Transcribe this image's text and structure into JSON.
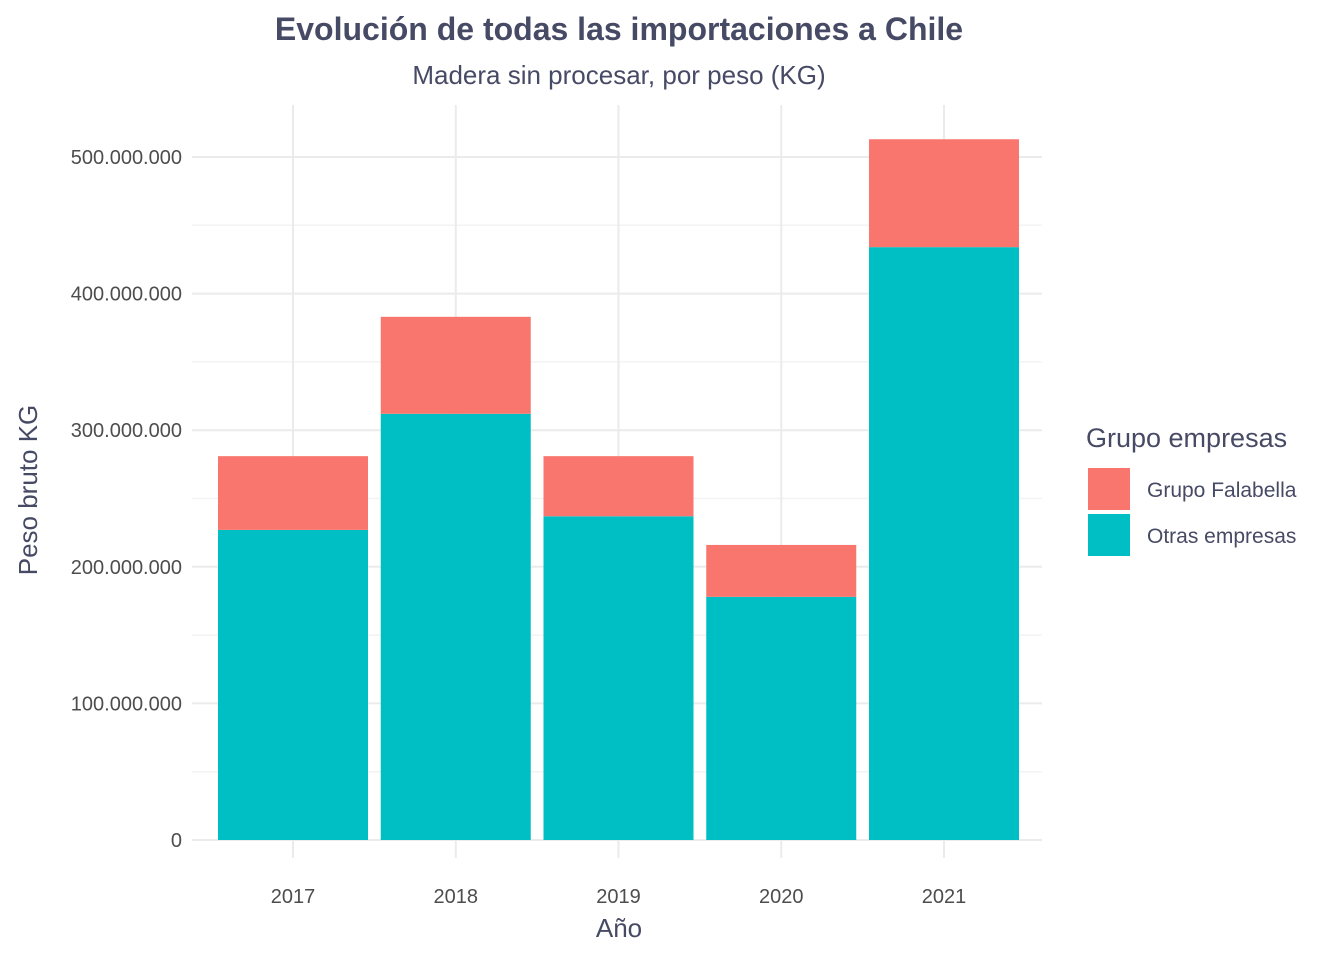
{
  "chart_data": {
    "type": "bar",
    "stacked": true,
    "title": "Evolución de todas las importaciones a Chile",
    "subtitle": "Madera sin procesar, por peso (KG)",
    "xlabel": "Año",
    "ylabel": "Peso bruto KG",
    "categories": [
      "2017",
      "2018",
      "2019",
      "2020",
      "2021"
    ],
    "ylim": [
      0,
      530000000
    ],
    "yticks": [
      0,
      100000000,
      200000000,
      300000000,
      400000000,
      500000000
    ],
    "ytick_labels": [
      "0",
      "100.000.000",
      "200.000.000",
      "300.000.000",
      "400.000.000",
      "500.000.000"
    ],
    "grid": true,
    "legend": {
      "title": "Grupo empresas",
      "position": "right"
    },
    "series": [
      {
        "name": "Otras empresas",
        "color": "#00bfc4",
        "values": [
          227000000,
          312000000,
          237000000,
          178000000,
          434000000
        ]
      },
      {
        "name": "Grupo Falabella",
        "color": "#f8766d",
        "values": [
          54000000,
          71000000,
          44000000,
          38000000,
          79000000
        ]
      }
    ]
  }
}
